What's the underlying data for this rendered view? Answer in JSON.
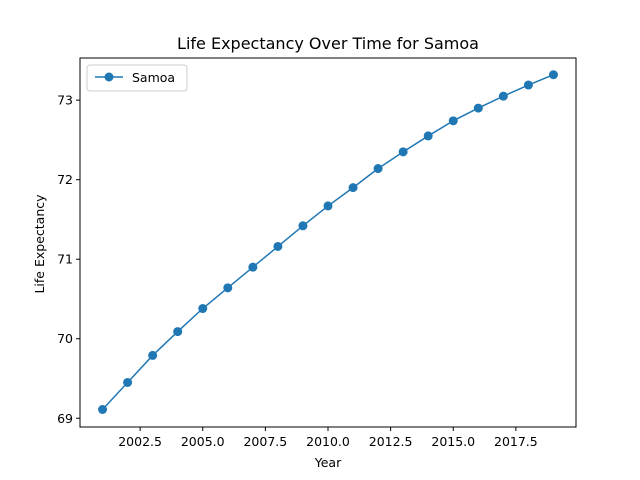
{
  "chart_data": {
    "type": "line",
    "title": "Life Expectancy Over Time for Samoa",
    "xlabel": "Year",
    "ylabel": "Life Expectancy",
    "xlim": [
      2000.1,
      2019.9
    ],
    "ylim": [
      68.89,
      73.53
    ],
    "x_ticks": [
      2002.5,
      2005.0,
      2007.5,
      2010.0,
      2012.5,
      2015.0,
      2017.5
    ],
    "x_tick_labels": [
      "2002.5",
      "2005.0",
      "2007.5",
      "2010.0",
      "2012.5",
      "2015.0",
      "2017.5"
    ],
    "y_ticks": [
      69,
      70,
      71,
      72,
      73
    ],
    "y_tick_labels": [
      "69",
      "70",
      "71",
      "72",
      "73"
    ],
    "grid": false,
    "legend_position": "upper-left",
    "series": [
      {
        "name": "Samoa",
        "color": "#1f77b4",
        "marker": "circle",
        "x": [
          2001,
          2002,
          2003,
          2004,
          2005,
          2006,
          2007,
          2008,
          2009,
          2010,
          2011,
          2012,
          2013,
          2014,
          2015,
          2016,
          2017,
          2018,
          2019
        ],
        "y": [
          69.11,
          69.45,
          69.79,
          70.09,
          70.38,
          70.64,
          70.9,
          71.16,
          71.42,
          71.67,
          71.9,
          72.14,
          72.35,
          72.55,
          72.74,
          72.9,
          73.05,
          73.19,
          73.32
        ]
      }
    ]
  }
}
